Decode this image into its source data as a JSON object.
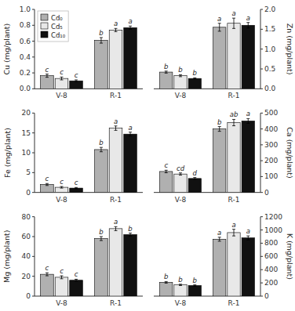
{
  "chart_data": [
    {
      "type": "bar",
      "y_label": "Cu (mg/plant)",
      "categories": [
        "V-8",
        "R-1"
      ],
      "ylim": [
        0,
        1.0
      ],
      "yticks": [
        {
          "value": 0.0,
          "label": "0.0"
        },
        0.2,
        0.4,
        0.6,
        0.8,
        {
          "value": 1.0,
          "label": "1.0"
        }
      ],
      "legend": "upper left",
      "series": [
        {
          "name": "Cd₀",
          "color": "#b0b0b0",
          "values": [
            0.165,
            0.61
          ],
          "errors": [
            0.02,
            0.035
          ],
          "letters": [
            "c",
            "b"
          ]
        },
        {
          "name": "Cd₅",
          "color": "#e8e8e8",
          "values": [
            0.13,
            0.74
          ],
          "errors": [
            0.018,
            0.02
          ],
          "letters": [
            "c",
            "a"
          ]
        },
        {
          "name": "Cd₁₀",
          "color": "#111111",
          "values": [
            0.1,
            0.77
          ],
          "errors": [
            0.012,
            0.02
          ],
          "letters": [
            "c",
            "a"
          ]
        }
      ]
    },
    {
      "type": "bar",
      "y_label": "Zn (mg/plant)",
      "categories": [
        "V-8",
        "R-1"
      ],
      "ylim": [
        0,
        2.0
      ],
      "yticks": [
        {
          "value": 0.0,
          "label": "0.0"
        },
        0.5,
        {
          "value": 1.0,
          "label": "1.0"
        },
        1.5,
        {
          "value": 2.0,
          "label": "2.0"
        }
      ],
      "series": [
        {
          "color": "#b0b0b0",
          "values": [
            0.42,
            1.55
          ],
          "errors": [
            0.025,
            0.1
          ],
          "letters": [
            "b",
            "a"
          ]
        },
        {
          "color": "#e8e8e8",
          "values": [
            0.33,
            1.65
          ],
          "errors": [
            0.025,
            0.13
          ],
          "letters": [
            "b",
            "a"
          ]
        },
        {
          "color": "#111111",
          "values": [
            0.26,
            1.6
          ],
          "errors": [
            0.015,
            0.07
          ],
          "letters": [
            "b",
            "a"
          ]
        }
      ]
    },
    {
      "type": "bar",
      "y_label": "Fe (mg/plant)",
      "categories": [
        "V-8",
        "R-1"
      ],
      "ylim": [
        0,
        20
      ],
      "yticks": [
        0,
        5,
        10,
        15,
        20
      ],
      "series": [
        {
          "color": "#b0b0b0",
          "values": [
            2.0,
            10.8
          ],
          "errors": [
            0.25,
            0.55
          ],
          "letters": [
            "c",
            "b"
          ]
        },
        {
          "color": "#e8e8e8",
          "values": [
            1.3,
            16.2
          ],
          "errors": [
            0.2,
            0.55
          ],
          "letters": [
            "c",
            "a"
          ]
        },
        {
          "color": "#111111",
          "values": [
            1.1,
            14.7
          ],
          "errors": [
            0.15,
            0.5
          ],
          "letters": [
            "c",
            "a"
          ]
        }
      ]
    },
    {
      "type": "bar",
      "y_label": "Ca (mg/plant)",
      "categories": [
        "V-8",
        "R-1"
      ],
      "ylim": [
        0,
        500
      ],
      "yticks": [
        0,
        100,
        200,
        300,
        400,
        500
      ],
      "series": [
        {
          "color": "#b0b0b0",
          "values": [
            132,
            400
          ],
          "errors": [
            8,
            15
          ],
          "letters": [
            "c",
            "b"
          ]
        },
        {
          "color": "#e8e8e8",
          "values": [
            116,
            440
          ],
          "errors": [
            7,
            20
          ],
          "letters": [
            "cd",
            "ab"
          ]
        },
        {
          "color": "#111111",
          "values": [
            88,
            450
          ],
          "errors": [
            6,
            15
          ],
          "letters": [
            "d",
            "a"
          ]
        }
      ]
    },
    {
      "type": "bar",
      "y_label": "Mg (mg/plant)",
      "categories": [
        "V-8",
        "R-1"
      ],
      "ylim": [
        0,
        80
      ],
      "yticks": [
        0,
        20,
        40,
        60,
        80
      ],
      "series": [
        {
          "color": "#b0b0b0",
          "values": [
            22,
            58
          ],
          "errors": [
            1.5,
            2.0
          ],
          "letters": [
            "c",
            "b"
          ]
        },
        {
          "color": "#e8e8e8",
          "values": [
            19,
            68
          ],
          "errors": [
            1.5,
            2.0
          ],
          "letters": [
            "c",
            "a"
          ]
        },
        {
          "color": "#111111",
          "values": [
            16,
            62
          ],
          "errors": [
            1.0,
            1.5
          ],
          "letters": [
            "c",
            "b"
          ]
        }
      ]
    },
    {
      "type": "bar",
      "y_label": "K (mg/plant)",
      "categories": [
        "V-8",
        "R-1"
      ],
      "ylim": [
        0,
        1200
      ],
      "yticks": [
        0,
        200,
        400,
        600,
        800,
        1000,
        1200
      ],
      "series": [
        {
          "color": "#b0b0b0",
          "values": [
            208,
            860
          ],
          "errors": [
            12,
            30
          ],
          "letters": [
            "b",
            "a"
          ]
        },
        {
          "color": "#e8e8e8",
          "values": [
            170,
            960
          ],
          "errors": [
            10,
            50
          ],
          "letters": [
            "b",
            "a"
          ]
        },
        {
          "color": "#111111",
          "values": [
            160,
            880
          ],
          "errors": [
            10,
            30
          ],
          "letters": [
            "b",
            "a"
          ]
        }
      ]
    }
  ]
}
